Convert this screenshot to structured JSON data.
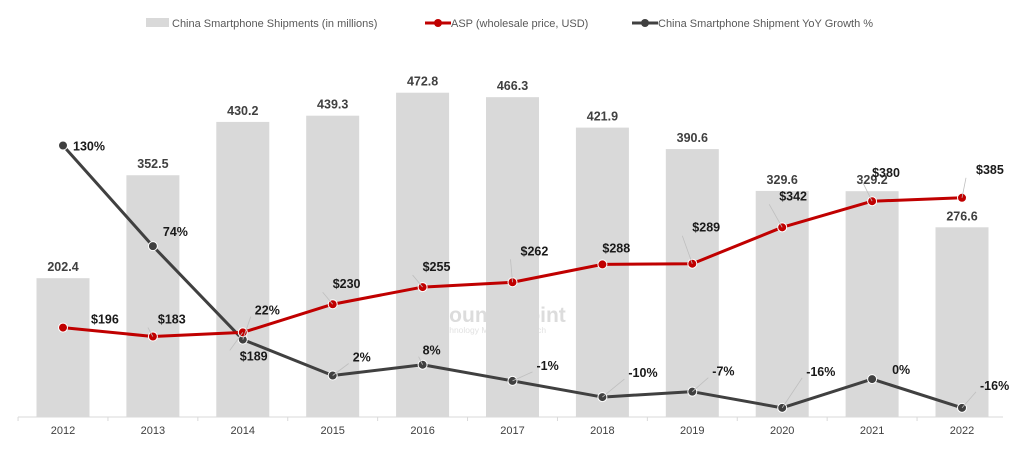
{
  "chart_data": {
    "type": "bar+line",
    "categories": [
      "2012",
      "2013",
      "2014",
      "2015",
      "2016",
      "2017",
      "2018",
      "2019",
      "2020",
      "2021",
      "2022"
    ],
    "series": [
      {
        "name": "China Smartphone Shipments (in millions)",
        "kind": "bar",
        "color": "#d9d9d9",
        "values": [
          202.4,
          352.5,
          430.2,
          439.3,
          472.8,
          466.3,
          421.9,
          390.6,
          329.6,
          329.2,
          276.6
        ],
        "labels": [
          "202.4",
          "352.5",
          "430.2",
          "439.3",
          "472.8",
          "466.3",
          "421.9",
          "390.6",
          "329.6",
          "329.2",
          "276.6"
        ]
      },
      {
        "name": "ASP (wholesale price, USD)",
        "kind": "line",
        "color": "#c00000",
        "values": [
          196,
          183,
          189,
          230,
          255,
          262,
          288,
          289,
          342,
          380,
          385
        ],
        "labels": [
          "$196",
          "$183",
          "$189",
          "$230",
          "$255",
          "$262",
          "$288",
          "$289",
          "$342",
          "$380",
          "$385"
        ]
      },
      {
        "name": "China Smartphone Shipment YoY Growth %",
        "kind": "line",
        "color": "#404040",
        "values": [
          130,
          74,
          22,
          2,
          8,
          -1,
          -10,
          -7,
          -16,
          0,
          -16
        ],
        "labels": [
          "130%",
          "74%",
          "22%",
          "2%",
          "8%",
          "-1%",
          "-10%",
          "-7%",
          "-16%",
          "0%",
          "-16%"
        ]
      }
    ],
    "legend_position": "top-center",
    "grid": false,
    "watermark": {
      "title": "Counterpoint",
      "subtitle": "Technology Market Research",
      "icon": "counterpoint-logo-icon"
    }
  }
}
